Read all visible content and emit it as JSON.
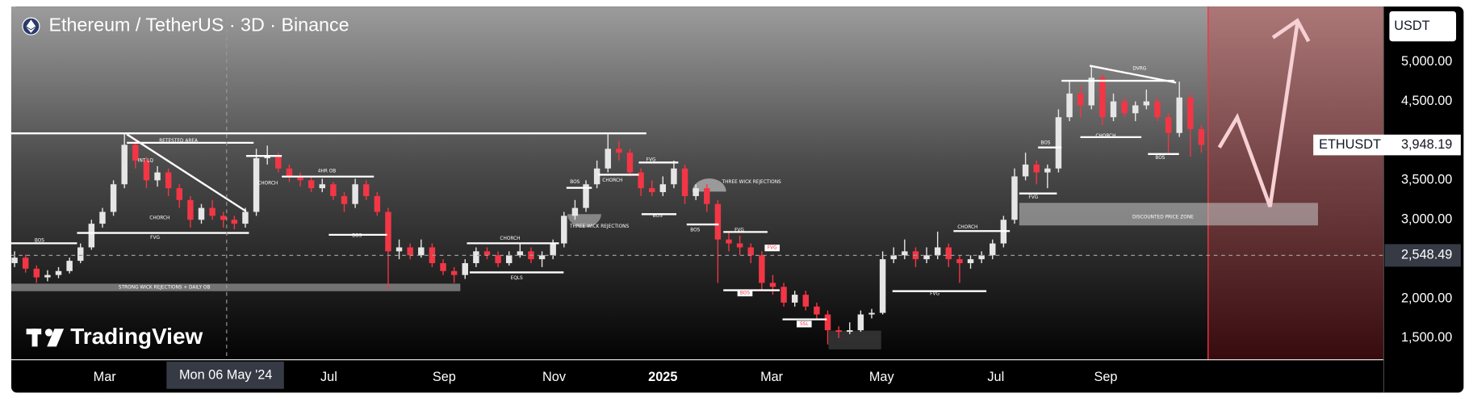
{
  "chart_data": {
    "type": "candlestick",
    "title": "Ethereum / TetherUS · 3D · Binance",
    "currency": "USDT",
    "symbol": "ETHUSDT",
    "watermark": "TradingView",
    "last_price": {
      "value": 3948.19,
      "label": "3,948.19"
    },
    "open": [
      2450,
      2520,
      2380,
      2270,
      2300,
      2350,
      2480,
      2650,
      2950,
      3100,
      3450,
      3950,
      3750,
      3500,
      3600,
      3400,
      3250,
      3000,
      3150,
      3050,
      3000,
      2950,
      3100,
      3780,
      3800,
      3650,
      3550,
      3500,
      3400,
      3450,
      3300,
      3200,
      3450,
      3300,
      3100,
      2600,
      2650,
      2550,
      2650,
      2450,
      2350,
      2300,
      2450,
      2600,
      2550,
      2450,
      2550,
      2600,
      2500,
      2550,
      2700,
      3050,
      3150,
      3450,
      3650,
      3900,
      3850,
      3600,
      3400,
      3350,
      3450,
      3650,
      3300,
      3400,
      3200,
      2750,
      2700,
      2650,
      2550,
      2200,
      2150,
      1950,
      2050,
      1900,
      1800,
      1600,
      1580,
      1600,
      1800,
      1820,
      2500,
      2550,
      2600,
      2500,
      2550,
      2650,
      2500,
      2450,
      2500,
      2550,
      2700,
      3000,
      3550,
      3700,
      3600,
      3650,
      4300,
      4600,
      4450,
      4800,
      4300,
      4500,
      4350,
      4450,
      4500,
      4300,
      4100,
      4550,
      4150
    ],
    "high": [
      2600,
      2560,
      2420,
      2360,
      2400,
      2520,
      2700,
      3000,
      3150,
      3500,
      4090,
      4000,
      3800,
      3680,
      3650,
      3450,
      3300,
      3200,
      3250,
      3100,
      3050,
      3150,
      3900,
      3940,
      3850,
      3700,
      3600,
      3550,
      3520,
      3480,
      3350,
      3520,
      3500,
      3350,
      3150,
      2750,
      2700,
      2750,
      2700,
      2500,
      2400,
      2500,
      2650,
      2650,
      2600,
      2600,
      2700,
      2650,
      2600,
      2750,
      3100,
      3250,
      3500,
      3750,
      4100,
      4000,
      3900,
      3650,
      3500,
      3550,
      3750,
      3700,
      3450,
      3450,
      3250,
      2850,
      2800,
      2700,
      2600,
      2300,
      2200,
      2100,
      2100,
      1950,
      1850,
      1650,
      1700,
      1850,
      1870,
      2600,
      2650,
      2750,
      2650,
      2650,
      2850,
      2700,
      2550,
      2550,
      2600,
      2750,
      3050,
      3650,
      3850,
      3750,
      3700,
      4400,
      4750,
      4700,
      4950,
      4850,
      4600,
      4550,
      4500,
      4650,
      4550,
      4350,
      4750,
      4600,
      4200
    ],
    "low": [
      2400,
      2330,
      2200,
      2220,
      2260,
      2320,
      2450,
      2620,
      2900,
      3050,
      3400,
      3650,
      3400,
      3420,
      3300,
      3150,
      2900,
      2950,
      3000,
      2900,
      2880,
      2900,
      3050,
      3700,
      3600,
      3480,
      3420,
      3350,
      3350,
      3250,
      3100,
      3150,
      3250,
      3050,
      2120,
      2500,
      2500,
      2520,
      2400,
      2300,
      2200,
      2250,
      2400,
      2500,
      2400,
      2420,
      2520,
      2450,
      2400,
      2500,
      2650,
      3000,
      3100,
      3400,
      3600,
      3750,
      3550,
      3300,
      3300,
      3300,
      3400,
      3200,
      3250,
      3100,
      2200,
      2600,
      2550,
      2450,
      2100,
      2050,
      1900,
      1900,
      1850,
      1750,
      1420,
      1500,
      1550,
      1580,
      1750,
      1800,
      2450,
      2500,
      2400,
      2450,
      2500,
      2400,
      2200,
      2380,
      2450,
      2500,
      2650,
      2950,
      3500,
      3450,
      3400,
      3600,
      4250,
      4300,
      4400,
      4200,
      4250,
      4300,
      4250,
      4400,
      4250,
      3850,
      4050,
      3800,
      3850
    ],
    "close": [
      2520,
      2380,
      2270,
      2300,
      2350,
      2480,
      2650,
      2950,
      3100,
      3450,
      3950,
      3750,
      3500,
      3600,
      3400,
      3250,
      3000,
      3150,
      3050,
      3000,
      2950,
      3100,
      3780,
      3800,
      3650,
      3550,
      3500,
      3400,
      3450,
      3300,
      3200,
      3450,
      3300,
      3100,
      2600,
      2650,
      2550,
      2650,
      2450,
      2350,
      2300,
      2450,
      2600,
      2550,
      2450,
      2550,
      2600,
      2500,
      2550,
      2700,
      3050,
      3150,
      3450,
      3650,
      3900,
      3850,
      3600,
      3400,
      3350,
      3450,
      3650,
      3300,
      3400,
      3200,
      2750,
      2700,
      2650,
      2550,
      2200,
      2150,
      1950,
      2050,
      1900,
      1800,
      1600,
      1580,
      1600,
      1800,
      1820,
      2500,
      2550,
      2600,
      2500,
      2550,
      2650,
      2500,
      2450,
      2500,
      2550,
      2700,
      3000,
      3550,
      3700,
      3600,
      3650,
      4300,
      4600,
      4450,
      4800,
      4300,
      4500,
      4350,
      4450,
      4500,
      4300,
      4100,
      4550,
      4150,
      3948.19
    ],
    "up_color": "#e6e6e6",
    "down_color": "#f23645",
    "grid": false,
    "xlim": [
      -0.3,
      124.6
    ],
    "ylim": [
      1226,
      5702
    ],
    "xticks": [
      {
        "value": 8.2,
        "label": "Mar"
      },
      {
        "value": 28.6,
        "label": "Jul"
      },
      {
        "value": 39.1,
        "label": "Sep"
      },
      {
        "value": 49.1,
        "label": "Nov"
      },
      {
        "value": 59.0,
        "label": "2025"
      },
      {
        "value": 68.9,
        "label": "Mar"
      },
      {
        "value": 78.9,
        "label": "May"
      },
      {
        "value": 89.3,
        "label": "Jul"
      },
      {
        "value": 99.3,
        "label": "Sep"
      }
    ],
    "yticks": [
      {
        "value": 1500,
        "label": "1,500.00"
      },
      {
        "value": 2000,
        "label": "2,000.00"
      },
      {
        "value": 3000,
        "label": "3,000.00"
      },
      {
        "value": 3500,
        "label": "3,500.00"
      },
      {
        "value": 4500,
        "label": "4,500.00"
      },
      {
        "value": 5000,
        "label": "5,000.00"
      }
    ],
    "crosshair": {
      "x": 19.3,
      "x_label": "Mon 06 May '24",
      "y": 2548.49,
      "y_label": "2,548.49"
    },
    "annotations": [
      "RETESTED AREA",
      "INT LQ",
      "CHORCH",
      "FVG",
      "BOS",
      "CHORCH",
      "4HR OB",
      "BOS",
      "STRONG WICK REJECTIONS + DAILY OB",
      "CHORCH",
      "EQLS",
      "BOS",
      "CHORCH",
      "FVG",
      "THREE WICK REJECTIONS",
      "BOS",
      "THREE WICK REJECTIONS",
      "BOS",
      "FVG",
      "FVG",
      "BOS",
      "SSL",
      "CHORCH",
      "FVG",
      "BOS",
      "FVG",
      "CHORCH",
      "DVRG",
      "BOS",
      "DISCOUNTED PRICE ZONE"
    ]
  }
}
